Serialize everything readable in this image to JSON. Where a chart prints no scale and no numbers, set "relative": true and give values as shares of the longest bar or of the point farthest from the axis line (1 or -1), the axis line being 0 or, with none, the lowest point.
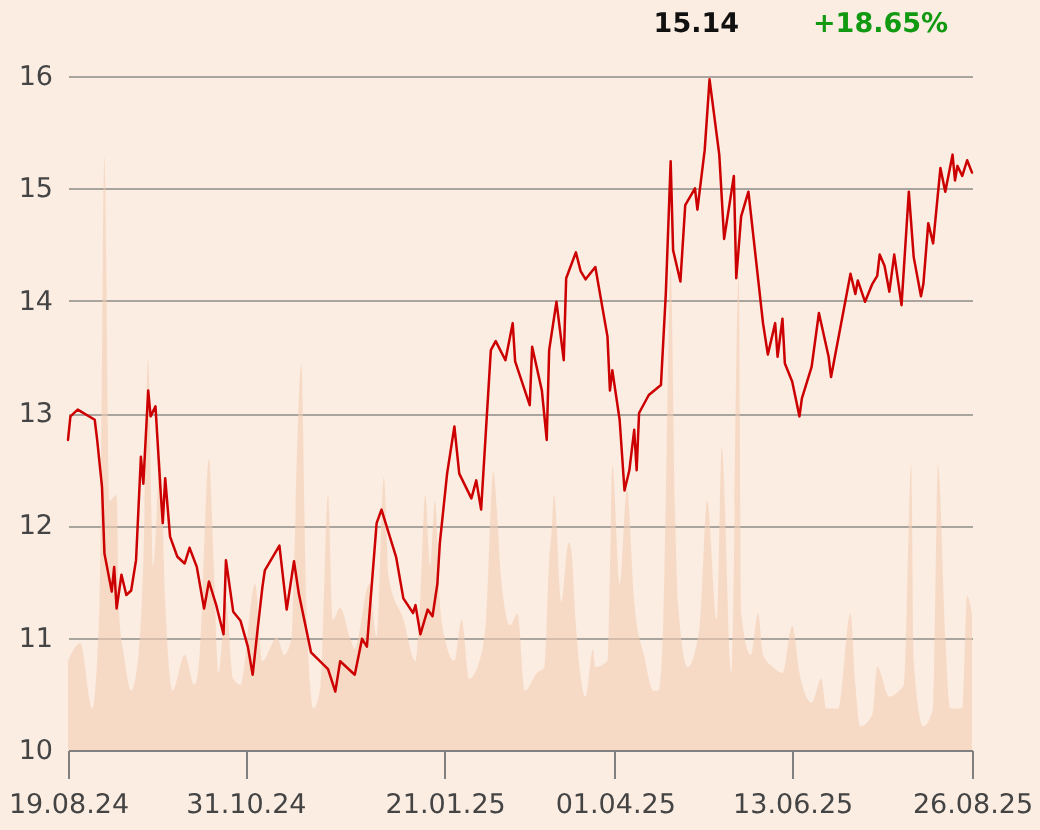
{
  "chart_data": [
    {
      "type": "line",
      "color": "#cc0000",
      "annotations": [
        "15.14",
        "+18.65%"
      ],
      "x": [
        "2024-08-19",
        "2024-08-20",
        "2024-08-23",
        "2024-08-30",
        "2024-08-31",
        "2024-09-02",
        "2024-09-03",
        "2024-09-06",
        "2024-09-07",
        "2024-09-08",
        "2024-09-10",
        "2024-09-12",
        "2024-09-14",
        "2024-09-16",
        "2024-09-18",
        "2024-09-19",
        "2024-09-21",
        "2024-09-22",
        "2024-09-24",
        "2024-09-26",
        "2024-09-27",
        "2024-09-28",
        "2024-09-30",
        "2024-10-03",
        "2024-10-06",
        "2024-10-08",
        "2024-10-11",
        "2024-10-14",
        "2024-10-16",
        "2024-10-19",
        "2024-10-22",
        "2024-10-23",
        "2024-10-26",
        "2024-10-29",
        "2024-11-01",
        "2024-11-03",
        "2024-11-05",
        "2024-11-07",
        "2024-11-08",
        "2024-11-14",
        "2024-11-17",
        "2024-11-20",
        "2024-11-22",
        "2024-11-27",
        "2024-12-04",
        "2024-12-07",
        "2024-12-09",
        "2024-12-15",
        "2024-12-18",
        "2024-12-20",
        "2024-12-24",
        "2024-12-26",
        "2025-01-01",
        "2025-01-04",
        "2025-01-08",
        "2025-01-09",
        "2025-01-11",
        "2025-01-14",
        "2025-01-16",
        "2025-01-18",
        "2025-01-19",
        "2025-01-22",
        "2025-01-25",
        "2025-01-26",
        "2025-01-27",
        "2025-02-01",
        "2025-02-03",
        "2025-02-05",
        "2025-02-07",
        "2025-02-09",
        "2025-02-11",
        "2025-02-15",
        "2025-02-18",
        "2025-02-19",
        "2025-02-25",
        "2025-02-26",
        "2025-03-02",
        "2025-03-04",
        "2025-03-05",
        "2025-03-08",
        "2025-03-11",
        "2025-03-12",
        "2025-03-16",
        "2025-03-18",
        "2025-03-20",
        "2025-03-24",
        "2025-03-29",
        "2025-03-30",
        "2025-03-31",
        "2025-04-03",
        "2025-04-05",
        "2025-04-07",
        "2025-04-09",
        "2025-04-10",
        "2025-04-11",
        "2025-04-15",
        "2025-04-20",
        "2025-04-22",
        "2025-04-24",
        "2025-04-25",
        "2025-04-28",
        "2025-04-30",
        "2025-05-04",
        "2025-05-05",
        "2025-05-08",
        "2025-05-10",
        "2025-05-14",
        "2025-05-16",
        "2025-05-20",
        "2025-05-21",
        "2025-05-23",
        "2025-05-26",
        "2025-06-01",
        "2025-06-03",
        "2025-06-06",
        "2025-06-07",
        "2025-06-09",
        "2025-06-10",
        "2025-06-13",
        "2025-06-16",
        "2025-06-17",
        "2025-06-21",
        "2025-06-24",
        "2025-06-28",
        "2025-06-29",
        "2025-07-07",
        "2025-07-09",
        "2025-07-10",
        "2025-07-13",
        "2025-07-16",
        "2025-07-18",
        "2025-07-19",
        "2025-07-21",
        "2025-07-23",
        "2025-07-25",
        "2025-07-28",
        "2025-07-31",
        "2025-08-02",
        "2025-08-05",
        "2025-08-06",
        "2025-08-08",
        "2025-08-10",
        "2025-08-13",
        "2025-08-15",
        "2025-08-18",
        "2025-08-19",
        "2025-08-20",
        "2025-08-22",
        "2025-08-24",
        "2025-08-26"
      ],
      "values": [
        12.76,
        12.97,
        13.03,
        12.94,
        12.76,
        12.34,
        11.75,
        11.41,
        11.63,
        11.26,
        11.56,
        11.38,
        11.42,
        11.69,
        12.61,
        12.37,
        13.2,
        12.97,
        13.06,
        12.34,
        12.02,
        12.42,
        11.9,
        11.72,
        11.66,
        11.8,
        11.63,
        11.26,
        11.5,
        11.29,
        11.03,
        11.69,
        11.23,
        11.15,
        10.92,
        10.67,
        11.07,
        11.45,
        11.6,
        11.82,
        11.25,
        11.68,
        11.39,
        10.87,
        10.72,
        10.52,
        10.79,
        10.67,
        10.99,
        10.92,
        12.02,
        12.14,
        11.72,
        11.35,
        11.22,
        11.29,
        11.03,
        11.25,
        11.19,
        11.48,
        11.84,
        12.46,
        12.88,
        12.67,
        12.46,
        12.24,
        12.4,
        12.14,
        12.85,
        13.56,
        13.64,
        13.47,
        13.8,
        13.46,
        13.07,
        13.59,
        13.2,
        12.76,
        13.56,
        13.99,
        13.47,
        14.2,
        14.43,
        14.26,
        14.19,
        14.3,
        13.68,
        13.2,
        13.38,
        12.94,
        12.31,
        12.49,
        12.85,
        12.49,
        13.0,
        13.16,
        13.25,
        14.06,
        15.24,
        14.45,
        14.17,
        14.85,
        15.0,
        14.81,
        15.34,
        15.97,
        15.3,
        14.55,
        15.11,
        14.2,
        14.75,
        14.97,
        13.8,
        13.52,
        13.8,
        13.5,
        13.84,
        13.44,
        13.28,
        12.97,
        13.13,
        13.41,
        13.89,
        13.5,
        13.32,
        14.24,
        14.06,
        14.18,
        13.99,
        14.15,
        14.22,
        14.41,
        14.31,
        14.08,
        14.41,
        13.96,
        14.97,
        14.39,
        14.04,
        14.15,
        14.69,
        14.51,
        15.18,
        14.97,
        15.3,
        15.07,
        15.2,
        15.11,
        15.25,
        15.14
      ],
      "xlim": [
        "2024-08-19",
        "2025-08-26"
      ],
      "xticks": [
        {
          "value": "2024-08-19",
          "label": "19.08.24"
        },
        {
          "value": "2024-10-31",
          "label": "31.10.24"
        },
        {
          "value": "2025-01-21",
          "label": "21.01.25"
        },
        {
          "value": "2025-04-01",
          "label": "01.04.25"
        },
        {
          "value": "2025-06-13",
          "label": "13.06.25"
        },
        {
          "value": "2025-08-26",
          "label": "26.08.25"
        }
      ],
      "ylim": [
        10,
        16
      ],
      "yticks": [
        10,
        11,
        12,
        13,
        14,
        15,
        16
      ],
      "grid": "y"
    },
    {
      "type": "area",
      "color": "#f7dac6",
      "relative": true,
      "tick_labels": false,
      "xlim": [
        "2024-08-19",
        "2025-08-26"
      ],
      "x": [
        "2024-08-19",
        "2024-08-24",
        "2024-08-29",
        "2024-09-01",
        "2024-09-03",
        "2024-09-05",
        "2024-09-08",
        "2024-09-09",
        "2024-09-11",
        "2024-09-14",
        "2024-09-17",
        "2024-09-19",
        "2024-09-21",
        "2024-09-23",
        "2024-09-26",
        "2024-09-28",
        "2024-10-01",
        "2024-10-06",
        "2024-10-10",
        "2024-10-12",
        "2024-10-16",
        "2024-10-18",
        "2024-10-20",
        "2024-10-23",
        "2024-10-26",
        "2024-10-29",
        "2024-11-04",
        "2024-11-07",
        "2024-11-13",
        "2024-11-16",
        "2024-11-19",
        "2024-11-20",
        "2024-11-23",
        "2024-11-25",
        "2024-11-28",
        "2024-12-01",
        "2024-12-04",
        "2024-12-06",
        "2024-12-09",
        "2024-12-13",
        "2024-12-15",
        "2024-12-21",
        "2024-12-24",
        "2024-12-27",
        "2024-12-29",
        "2025-01-04",
        "2025-01-09",
        "2025-01-11",
        "2025-01-13",
        "2025-01-15",
        "2025-01-17",
        "2025-01-19",
        "2025-01-21",
        "2025-01-25",
        "2025-01-28",
        "2025-01-31",
        "2025-02-05",
        "2025-02-07",
        "2025-02-10",
        "2025-02-12",
        "2025-02-13",
        "2025-02-17",
        "2025-02-20",
        "2025-02-23",
        "2025-02-28",
        "2025-03-03",
        "2025-03-05",
        "2025-03-06",
        "2025-03-07",
        "2025-03-10",
        "2025-03-13",
        "2025-03-14",
        "2025-03-16",
        "2025-03-20",
        "2025-03-23",
        "2025-03-24",
        "2025-03-29",
        "2025-03-30",
        "2025-03-31",
        "2025-04-03",
        "2025-04-06",
        "2025-04-09",
        "2025-04-13",
        "2025-04-17",
        "2025-04-19",
        "2025-04-21",
        "2025-04-22",
        "2025-04-24",
        "2025-04-26",
        "2025-04-27",
        "2025-05-01",
        "2025-05-06",
        "2025-05-09",
        "2025-05-13",
        "2025-05-15",
        "2025-05-19",
        "2025-05-22",
        "2025-05-23",
        "2025-05-27",
        "2025-05-30",
        "2025-06-01",
        "2025-06-05",
        "2025-06-09",
        "2025-06-13",
        "2025-06-16",
        "2025-06-21",
        "2025-06-25",
        "2025-06-27",
        "2025-07-02",
        "2025-07-07",
        "2025-07-09",
        "2025-07-11",
        "2025-07-16",
        "2025-07-18",
        "2025-07-23",
        "2025-07-27",
        "2025-07-29",
        "2025-08-01",
        "2025-08-02",
        "2025-08-06",
        "2025-08-10",
        "2025-08-12",
        "2025-08-15",
        "2025-08-17",
        "2025-08-22",
        "2025-08-24",
        "2025-08-26"
      ],
      "values": [
        0.15,
        0.18,
        0.07,
        0.25,
        1.0,
        0.42,
        0.43,
        0.23,
        0.16,
        0.1,
        0.16,
        0.32,
        0.66,
        0.31,
        0.49,
        0.25,
        0.1,
        0.16,
        0.11,
        0.15,
        0.49,
        0.31,
        0.13,
        0.25,
        0.12,
        0.11,
        0.28,
        0.15,
        0.19,
        0.16,
        0.19,
        0.31,
        0.65,
        0.25,
        0.07,
        0.11,
        0.43,
        0.22,
        0.24,
        0.19,
        0.17,
        0.28,
        0.19,
        0.46,
        0.29,
        0.22,
        0.15,
        0.26,
        0.43,
        0.31,
        0.42,
        0.25,
        0.19,
        0.15,
        0.22,
        0.12,
        0.16,
        0.22,
        0.47,
        0.37,
        0.3,
        0.21,
        0.23,
        0.1,
        0.13,
        0.14,
        0.32,
        0.37,
        0.43,
        0.25,
        0.35,
        0.34,
        0.21,
        0.09,
        0.17,
        0.14,
        0.15,
        0.3,
        0.48,
        0.28,
        0.44,
        0.25,
        0.16,
        0.1,
        0.1,
        0.22,
        0.42,
        0.81,
        0.37,
        0.25,
        0.14,
        0.21,
        0.42,
        0.22,
        0.51,
        0.13,
        0.8,
        0.23,
        0.16,
        0.23,
        0.16,
        0.14,
        0.13,
        0.21,
        0.13,
        0.08,
        0.12,
        0.07,
        0.07,
        0.23,
        0.11,
        0.04,
        0.06,
        0.14,
        0.09,
        0.1,
        0.11,
        0.48,
        0.15,
        0.04,
        0.07,
        0.48,
        0.19,
        0.07,
        0.07,
        0.26,
        0.23
      ]
    }
  ]
}
